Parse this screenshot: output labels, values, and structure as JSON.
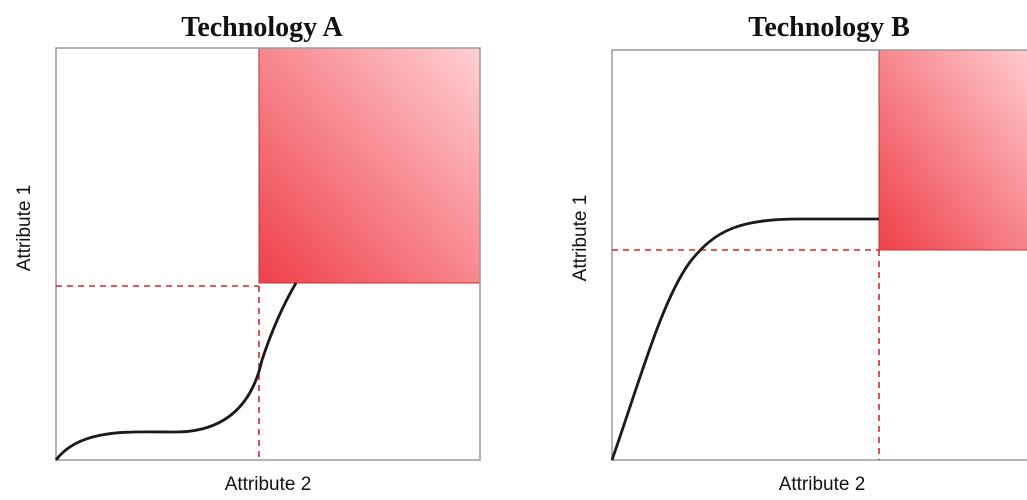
{
  "chart_data": [
    {
      "type": "line",
      "title": "Technology A",
      "xlabel": "Attribute 2",
      "ylabel": "Attribute 1",
      "colors": {
        "curve": "#1a1a1a",
        "threshold": "#d62728",
        "region": "#e8303a"
      }
    },
    {
      "type": "line",
      "title": "Technology B",
      "xlabel": "Attribute 2",
      "ylabel": "Attribute 1",
      "colors": {
        "curve": "#1a1a1a",
        "threshold": "#d62728",
        "region": "#e8303a"
      }
    }
  ]
}
